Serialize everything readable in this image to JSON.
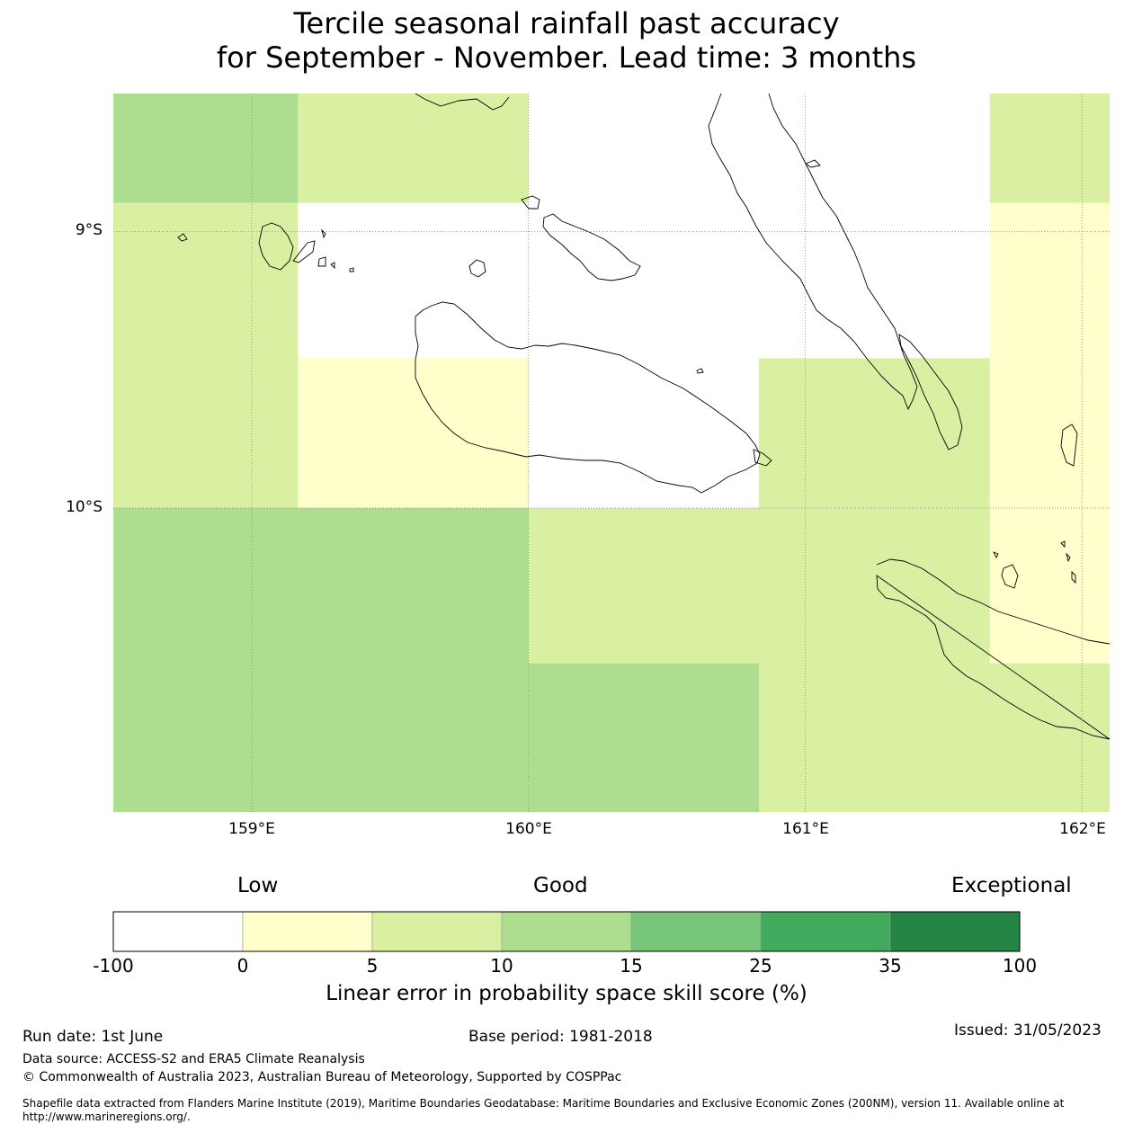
{
  "title": {
    "line1": "Tercile seasonal rainfall past accuracy",
    "line2": "for September - November. Lead time: 3 months"
  },
  "map": {
    "lat_labels": [
      "9°S",
      "10°S"
    ],
    "lon_labels": [
      "159°E",
      "160°E",
      "161°E",
      "162°E"
    ],
    "lon_range": [
      158.5,
      162.1
    ],
    "lat_range": [
      -11.1,
      -8.5
    ],
    "grid_cells": [
      {
        "lon": [
          158.5,
          159.167
        ],
        "lat": [
          -8.896,
          -8.5
        ],
        "class": 3
      },
      {
        "lon": [
          159.167,
          160.0
        ],
        "lat": [
          -8.896,
          -8.5
        ],
        "class": 2
      },
      {
        "lon": [
          160.0,
          161.667
        ],
        "lat": [
          -8.896,
          -8.5
        ],
        "class": 0
      },
      {
        "lon": [
          161.667,
          162.1
        ],
        "lat": [
          -8.896,
          -8.5
        ],
        "class": 2
      },
      {
        "lon": [
          158.5,
          159.167
        ],
        "lat": [
          -10.0,
          -8.896
        ],
        "class": 2
      },
      {
        "lon": [
          159.167,
          160.0
        ],
        "lat": [
          -9.458,
          -8.896
        ],
        "class": 0
      },
      {
        "lon": [
          160.0,
          161.667
        ],
        "lat": [
          -9.458,
          -8.896
        ],
        "class": 0
      },
      {
        "lon": [
          159.167,
          160.0
        ],
        "lat": [
          -10.0,
          -9.458
        ],
        "class": 1
      },
      {
        "lon": [
          160.0,
          160.833
        ],
        "lat": [
          -10.0,
          -9.458
        ],
        "class": 0
      },
      {
        "lon": [
          160.833,
          161.667
        ],
        "lat": [
          -10.0,
          -9.458
        ],
        "class": 2
      },
      {
        "lon": [
          161.667,
          162.1
        ],
        "lat": [
          -10.562,
          -8.896
        ],
        "class": 1
      },
      {
        "lon": [
          158.5,
          160.0
        ],
        "lat": [
          -11.1,
          -10.0
        ],
        "class": 3
      },
      {
        "lon": [
          160.0,
          161.667
        ],
        "lat": [
          -10.562,
          -10.0
        ],
        "class": 2
      },
      {
        "lon": [
          160.0,
          160.833
        ],
        "lat": [
          -11.1,
          -10.562
        ],
        "class": 3
      },
      {
        "lon": [
          160.833,
          162.1
        ],
        "lat": [
          -11.1,
          -10.562
        ],
        "class": 2
      }
    ]
  },
  "colorbar": {
    "labels": {
      "low": "Low",
      "good": "Good",
      "exceptional": "Exceptional"
    },
    "ticks": [
      "-100",
      "0",
      "5",
      "10",
      "15",
      "25",
      "35",
      "100"
    ],
    "colors": [
      "#ffffff",
      "#ffffcc",
      "#d9f0a3",
      "#addd8e",
      "#78c679",
      "#41ab5d",
      "#238443"
    ],
    "title": "Linear error in probability space skill score (%)"
  },
  "footer": {
    "run_date": "Run date: 1st June",
    "base_period": "Base period: 1981-2018",
    "issued": "Issued: 31/05/2023",
    "data_source": "Data source: ACCESS-S2 and ERA5 Climate Reanalysis",
    "copyright": "© Commonwealth of Australia 2023, Australian Bureau of Meteorology, Supported by COSPPac",
    "shapefile_line1": "Shapefile data extracted from Flanders Marine Institute (2019), Maritime Boundaries Geodatabase: Maritime Boundaries and Exclusive Economic Zones (200NM), version 11. Available online at",
    "shapefile_line2": "http://www.marineregions.org/."
  }
}
